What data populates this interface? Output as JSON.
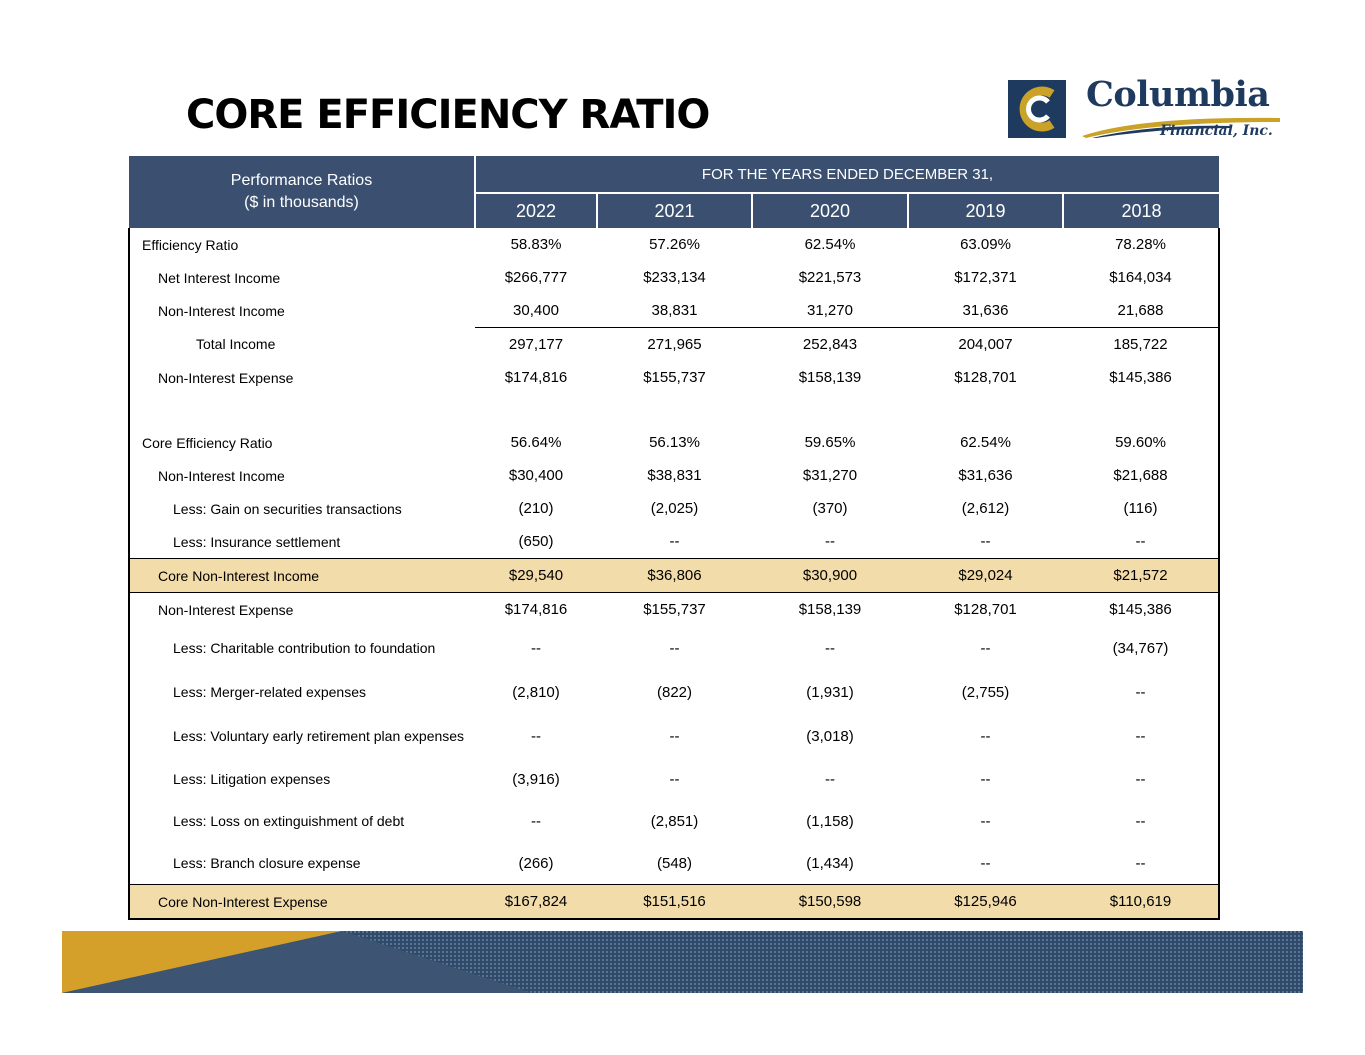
{
  "title": "CORE EFFICIENCY RATIO",
  "logo": {
    "name": "Columbia",
    "sub": "Financial, Inc."
  },
  "colors": {
    "header_bg": "#3b5070",
    "highlight_bg": "#f2dcaa",
    "brand_navy": "#1f3a5f",
    "brand_gold": "#c9a227"
  },
  "table": {
    "label_header_line1": "Performance Ratios",
    "label_header_line2": "($ in thousands)",
    "group_header": "FOR THE YEARS ENDED DECEMBER 31,",
    "years": [
      "2022",
      "2021",
      "2020",
      "2019",
      "2018"
    ],
    "rows": [
      {
        "label": "Efficiency Ratio",
        "indent": 0,
        "values": [
          "58.83%",
          "57.26%",
          "62.54%",
          "63.09%",
          "78.28%"
        ]
      },
      {
        "label": "Net Interest Income",
        "indent": 1,
        "values": [
          "$266,777",
          "$233,134",
          "$221,573",
          "$172,371",
          "$164,034"
        ]
      },
      {
        "label": "Non-Interest Income",
        "indent": 1,
        "values": [
          "30,400",
          "38,831",
          "31,270",
          "31,636",
          "21,688"
        ]
      },
      {
        "label": "Total Income",
        "indent": 3,
        "values": [
          "297,177",
          "271,965",
          "252,843",
          "204,007",
          "185,722"
        ]
      },
      {
        "label": "Non-Interest Expense",
        "indent": 1,
        "values": [
          "$174,816",
          "$155,737",
          "$158,139",
          "$128,701",
          "$145,386"
        ]
      },
      {
        "label": "",
        "indent": 0,
        "values": [
          "",
          "",
          "",
          "",
          ""
        ]
      },
      {
        "label": "Core Efficiency Ratio",
        "indent": 0,
        "values": [
          "56.64%",
          "56.13%",
          "59.65%",
          "62.54%",
          "59.60%"
        ]
      },
      {
        "label": "Non-Interest Income",
        "indent": 1,
        "values": [
          "$30,400",
          "$38,831",
          "$31,270",
          "$31,636",
          "$21,688"
        ]
      },
      {
        "label": "Less: Gain on securities transactions",
        "indent": 2,
        "values": [
          "(210)",
          "(2,025)",
          "(370)",
          "(2,612)",
          "(116)"
        ]
      },
      {
        "label": "Less: Insurance settlement",
        "indent": 2,
        "values": [
          "(650)",
          "--",
          "--",
          "--",
          "--"
        ]
      },
      {
        "label": "Core Non-Interest Income",
        "indent": 1,
        "values": [
          "$29,540",
          "$36,806",
          "$30,900",
          "$29,024",
          "$21,572"
        ]
      },
      {
        "label": "Non-Interest Expense",
        "indent": 1,
        "values": [
          "$174,816",
          "$155,737",
          "$158,139",
          "$128,701",
          "$145,386"
        ]
      },
      {
        "label": "Less: Charitable contribution to foundation",
        "indent": 2,
        "values": [
          "--",
          "--",
          "--",
          "--",
          "(34,767)"
        ]
      },
      {
        "label": "Less: Merger-related expenses",
        "indent": 2,
        "values": [
          "(2,810)",
          "(822)",
          "(1,931)",
          "(2,755)",
          "--"
        ]
      },
      {
        "label": "Less: Voluntary early retirement plan expenses",
        "indent": 2,
        "values": [
          "--",
          "--",
          "(3,018)",
          "--",
          "--"
        ]
      },
      {
        "label": "Less: Litigation expenses",
        "indent": 2,
        "values": [
          "(3,916)",
          "--",
          "--",
          "--",
          "--"
        ]
      },
      {
        "label": "Less: Loss on extinguishment of debt",
        "indent": 2,
        "values": [
          "--",
          "(2,851)",
          "(1,158)",
          "--",
          "--"
        ]
      },
      {
        "label": "Less: Branch closure expense",
        "indent": 2,
        "values": [
          "(266)",
          "(548)",
          "(1,434)",
          "--",
          "--"
        ]
      },
      {
        "label": "Core Non-Interest Expense",
        "indent": 1,
        "values": [
          "$167,824",
          "$151,516",
          "$150,598",
          "$125,946",
          "$110,619"
        ]
      }
    ]
  }
}
